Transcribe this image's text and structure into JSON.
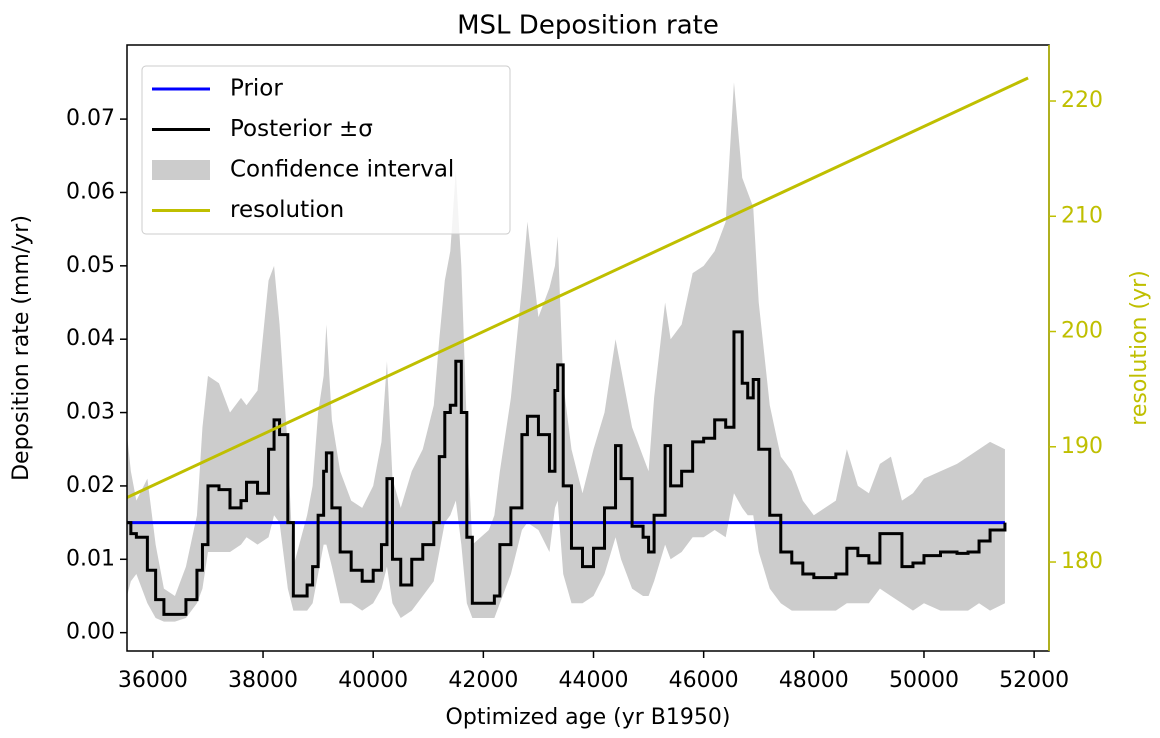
{
  "chart_data": {
    "type": "line",
    "title": "MSL Deposition rate",
    "x_label": "Optimized age (yr B1950)",
    "y_label": "Deposition rate (mm/yr)",
    "y2_label": "resolution (yr)",
    "xlim": [
      35530,
      52270
    ],
    "ylim": [
      -0.0025,
      0.0801
    ],
    "y2lim": [
      172.28,
      224.86
    ],
    "xticks": [
      36000,
      38000,
      40000,
      42000,
      44000,
      46000,
      48000,
      50000,
      52000
    ],
    "yticks": [
      {
        "value": 0,
        "label": "0.00"
      },
      0.01,
      0.02,
      0.03,
      0.04,
      0.05,
      0.06,
      0.07
    ],
    "y2ticks": [
      180,
      190,
      200,
      210,
      220
    ],
    "y2_color": "#bfbf00",
    "legend": "upper left",
    "x": [
      35530,
      35600,
      35700,
      35900,
      36050,
      36200,
      36400,
      36600,
      36800,
      36900,
      37000,
      37200,
      37400,
      37600,
      37700,
      37900,
      38100,
      38200,
      38300,
      38450,
      38550,
      38800,
      38900,
      39000,
      39100,
      39150,
      39250,
      39400,
      39600,
      39800,
      40000,
      40150,
      40250,
      40350,
      40500,
      40700,
      40900,
      41100,
      41200,
      41300,
      41400,
      41500,
      41600,
      41700,
      41800,
      42100,
      42200,
      42300,
      42500,
      42700,
      42800,
      43000,
      43200,
      43300,
      43350,
      43450,
      43600,
      43800,
      44000,
      44200,
      44400,
      44500,
      44700,
      44900,
      45000,
      45100,
      45300,
      45400,
      45600,
      45800,
      46000,
      46200,
      46400,
      46550,
      46700,
      46800,
      46900,
      47000,
      47200,
      47400,
      47600,
      47800,
      48000,
      48400,
      48600,
      48800,
      49000,
      49200,
      49400,
      49600,
      49800,
      50000,
      50300,
      50600,
      50800,
      51000,
      51200,
      51470
    ],
    "series": [
      {
        "name": "Prior",
        "color": "#0000ff",
        "x": [
          35530,
          51470
        ],
        "values": [
          0.015,
          0.015
        ]
      },
      {
        "name": "Posterior ±σ",
        "color": "#000000",
        "step": true,
        "values": [
          0.015,
          0.0135,
          0.013,
          0.0085,
          0.0045,
          0.0025,
          0.0025,
          0.0045,
          0.0085,
          0.012,
          0.02,
          0.0195,
          0.017,
          0.018,
          0.0205,
          0.019,
          0.025,
          0.029,
          0.027,
          0.015,
          0.005,
          0.0065,
          0.009,
          0.016,
          0.022,
          0.0245,
          0.017,
          0.011,
          0.0085,
          0.007,
          0.0085,
          0.012,
          0.021,
          0.01,
          0.0065,
          0.01,
          0.012,
          0.015,
          0.024,
          0.03,
          0.031,
          0.037,
          0.03,
          0.013,
          0.004,
          0.004,
          0.005,
          0.012,
          0.017,
          0.027,
          0.0295,
          0.027,
          0.022,
          0.033,
          0.0365,
          0.02,
          0.0115,
          0.009,
          0.0115,
          0.017,
          0.0255,
          0.021,
          0.0145,
          0.013,
          0.011,
          0.016,
          0.0255,
          0.02,
          0.022,
          0.026,
          0.0265,
          0.029,
          0.028,
          0.041,
          0.034,
          0.032,
          0.0345,
          0.025,
          0.016,
          0.011,
          0.0095,
          0.008,
          0.0075,
          0.008,
          0.0115,
          0.0105,
          0.0095,
          0.0135,
          0.0135,
          0.009,
          0.0095,
          0.0105,
          0.011,
          0.0108,
          0.011,
          0.0125,
          0.014,
          0.015
        ]
      },
      {
        "name": "Confidence interval",
        "color": "#cccccc",
        "band": true,
        "lower": [
          0.005,
          0.007,
          0.008,
          0.004,
          0.002,
          0.0015,
          0.0015,
          0.002,
          0.004,
          0.006,
          0.011,
          0.011,
          0.011,
          0.012,
          0.013,
          0.012,
          0.013,
          0.016,
          0.015,
          0.006,
          0.003,
          0.003,
          0.004,
          0.008,
          0.012,
          0.012,
          0.009,
          0.004,
          0.004,
          0.003,
          0.004,
          0.006,
          0.009,
          0.004,
          0.002,
          0.003,
          0.005,
          0.007,
          0.011,
          0.015,
          0.016,
          0.018,
          0.012,
          0.004,
          0.002,
          0.002,
          0.002,
          0.004,
          0.008,
          0.014,
          0.015,
          0.014,
          0.011,
          0.017,
          0.018,
          0.008,
          0.004,
          0.004,
          0.005,
          0.008,
          0.013,
          0.01,
          0.006,
          0.005,
          0.005,
          0.007,
          0.012,
          0.01,
          0.011,
          0.013,
          0.013,
          0.014,
          0.013,
          0.019,
          0.017,
          0.016,
          0.016,
          0.011,
          0.006,
          0.004,
          0.003,
          0.003,
          0.003,
          0.003,
          0.004,
          0.004,
          0.004,
          0.006,
          0.005,
          0.004,
          0.003,
          0.004,
          0.003,
          0.003,
          0.003,
          0.004,
          0.003,
          0.004
        ],
        "upper": [
          0.027,
          0.022,
          0.018,
          0.021,
          0.012,
          0.006,
          0.005,
          0.009,
          0.016,
          0.028,
          0.035,
          0.034,
          0.03,
          0.032,
          0.031,
          0.033,
          0.048,
          0.05,
          0.042,
          0.025,
          0.009,
          0.016,
          0.02,
          0.03,
          0.035,
          0.042,
          0.029,
          0.022,
          0.018,
          0.017,
          0.02,
          0.026,
          0.037,
          0.021,
          0.017,
          0.022,
          0.025,
          0.031,
          0.04,
          0.048,
          0.052,
          0.063,
          0.05,
          0.028,
          0.012,
          0.014,
          0.016,
          0.022,
          0.032,
          0.047,
          0.056,
          0.043,
          0.047,
          0.05,
          0.054,
          0.034,
          0.025,
          0.019,
          0.025,
          0.03,
          0.04,
          0.036,
          0.028,
          0.024,
          0.022,
          0.032,
          0.045,
          0.04,
          0.042,
          0.049,
          0.05,
          0.052,
          0.056,
          0.075,
          0.062,
          0.06,
          0.058,
          0.045,
          0.031,
          0.024,
          0.022,
          0.018,
          0.016,
          0.018,
          0.025,
          0.02,
          0.019,
          0.023,
          0.024,
          0.018,
          0.019,
          0.021,
          0.022,
          0.023,
          0.024,
          0.025,
          0.026,
          0.025
        ]
      },
      {
        "name": "resolution",
        "color": "#bfbf00",
        "axis": "y2",
        "x": [
          35530,
          51890
        ],
        "values": [
          185.6,
          222.0
        ]
      }
    ]
  }
}
